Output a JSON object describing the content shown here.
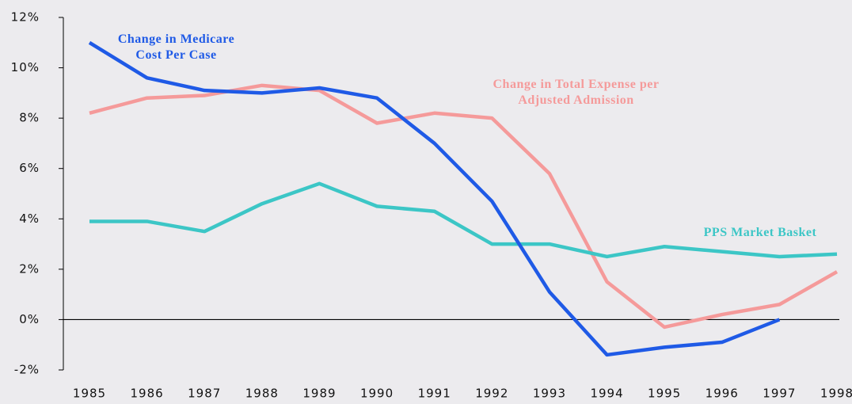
{
  "chart_data": {
    "type": "line",
    "x": [
      1985,
      1986,
      1987,
      1988,
      1989,
      1990,
      1991,
      1992,
      1993,
      1994,
      1995,
      1996,
      1997,
      1998
    ],
    "xlim": [
      1985,
      1998
    ],
    "xticks": [
      1985,
      1986,
      1987,
      1988,
      1989,
      1990,
      1991,
      1992,
      1993,
      1994,
      1995,
      1996,
      1997,
      1998
    ],
    "ylim": [
      -2,
      12
    ],
    "yticks": [
      {
        "value": -2,
        "label": "-2%"
      },
      {
        "value": 0,
        "label": "0%"
      },
      {
        "value": 2,
        "label": "2%"
      },
      {
        "value": 4,
        "label": "4%"
      },
      {
        "value": 6,
        "label": "6%"
      },
      {
        "value": 8,
        "label": "8%"
      },
      {
        "value": 10,
        "label": "10%"
      },
      {
        "value": 12,
        "label": "12%"
      }
    ],
    "series": [
      {
        "name": "Change in Medicare Cost Per Case",
        "color": "#1f5ae6",
        "values": [
          11.0,
          9.6,
          9.1,
          9.0,
          9.2,
          8.8,
          7.0,
          4.7,
          1.1,
          -1.4,
          -1.1,
          -0.9,
          0.0,
          null
        ]
      },
      {
        "name": "Change in Total Expense per Adjusted Admission",
        "color": "#f59a9a",
        "values": [
          8.2,
          8.8,
          8.9,
          9.3,
          9.1,
          7.8,
          8.2,
          8.0,
          5.8,
          1.5,
          -0.3,
          0.2,
          0.6,
          1.9
        ]
      },
      {
        "name": "PPS Market Basket",
        "color": "#3cc6c6",
        "values": [
          3.9,
          3.9,
          3.5,
          4.6,
          5.4,
          4.5,
          4.3,
          3.0,
          3.0,
          2.5,
          2.9,
          2.7,
          2.5,
          2.6
        ]
      }
    ]
  }
}
